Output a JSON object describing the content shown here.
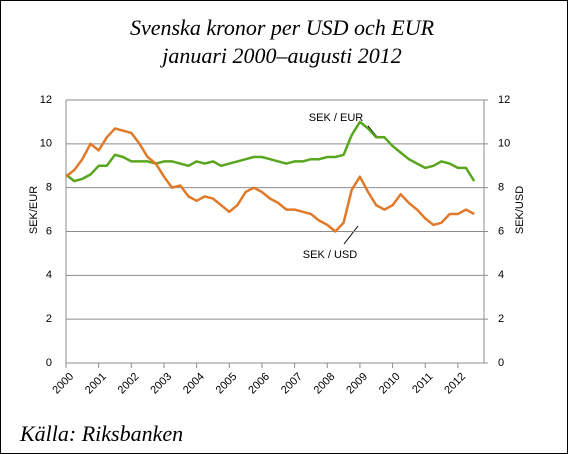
{
  "chart_data": {
    "type": "line",
    "title": "Svenska kronor per USD och EUR",
    "subtitle": "januari 2000–augusti 2012",
    "source": "Källa: Riksbanken",
    "ylabel": "SEK/EUR",
    "y2label": "SEK/USD",
    "annotations": [
      "SEK / EUR",
      "SEK / USD"
    ],
    "x": [
      2000,
      2000.25,
      2000.5,
      2000.75,
      2001,
      2001.25,
      2001.5,
      2001.75,
      2002,
      2002.25,
      2002.5,
      2002.75,
      2003,
      2003.25,
      2003.5,
      2003.75,
      2004,
      2004.25,
      2004.5,
      2004.75,
      2005,
      2005.25,
      2005.5,
      2005.75,
      2006,
      2006.25,
      2006.5,
      2006.75,
      2007,
      2007.25,
      2007.5,
      2007.75,
      2008,
      2008.25,
      2008.5,
      2008.75,
      2009,
      2009.25,
      2009.5,
      2009.75,
      2010,
      2010.25,
      2010.5,
      2010.75,
      2011,
      2011.25,
      2011.5,
      2011.75,
      2012,
      2012.25,
      2012.5
    ],
    "series": [
      {
        "name": "SEK / EUR",
        "color": "#5aa51e",
        "values": [
          8.6,
          8.3,
          8.4,
          8.6,
          9.0,
          9.0,
          9.5,
          9.4,
          9.2,
          9.2,
          9.2,
          9.1,
          9.2,
          9.2,
          9.1,
          9.0,
          9.2,
          9.1,
          9.2,
          9.0,
          9.1,
          9.2,
          9.3,
          9.4,
          9.4,
          9.3,
          9.2,
          9.1,
          9.2,
          9.2,
          9.3,
          9.3,
          9.4,
          9.4,
          9.5,
          10.4,
          11.0,
          10.7,
          10.3,
          10.3,
          9.9,
          9.6,
          9.3,
          9.1,
          8.9,
          9.0,
          9.2,
          9.1,
          8.9,
          8.9,
          8.3
        ]
      },
      {
        "name": "SEK / USD",
        "color": "#e07a2a",
        "axis": "y2",
        "values": [
          8.5,
          8.8,
          9.3,
          10.0,
          9.7,
          10.3,
          10.7,
          10.6,
          10.5,
          10.0,
          9.4,
          9.1,
          8.5,
          8.0,
          8.1,
          7.6,
          7.4,
          7.6,
          7.5,
          7.2,
          6.9,
          7.2,
          7.8,
          8.0,
          7.8,
          7.5,
          7.3,
          7.0,
          7.0,
          6.9,
          6.8,
          6.5,
          6.3,
          6.0,
          6.4,
          7.9,
          8.5,
          7.8,
          7.2,
          7.0,
          7.2,
          7.7,
          7.3,
          7.0,
          6.6,
          6.3,
          6.4,
          6.8,
          6.8,
          7.0,
          6.8
        ]
      }
    ],
    "xlim": [
      2000,
      2012.8
    ],
    "xticks": [
      2000,
      2001,
      2002,
      2003,
      2004,
      2005,
      2006,
      2007,
      2008,
      2009,
      2010,
      2011,
      2012
    ],
    "ylim": [
      0,
      12
    ],
    "yticks": [
      0,
      2,
      4,
      6,
      8,
      10,
      12
    ],
    "y2lim": [
      0,
      12
    ],
    "y2ticks": [
      0,
      2,
      4,
      6,
      8,
      10,
      12
    ],
    "grid": true
  }
}
